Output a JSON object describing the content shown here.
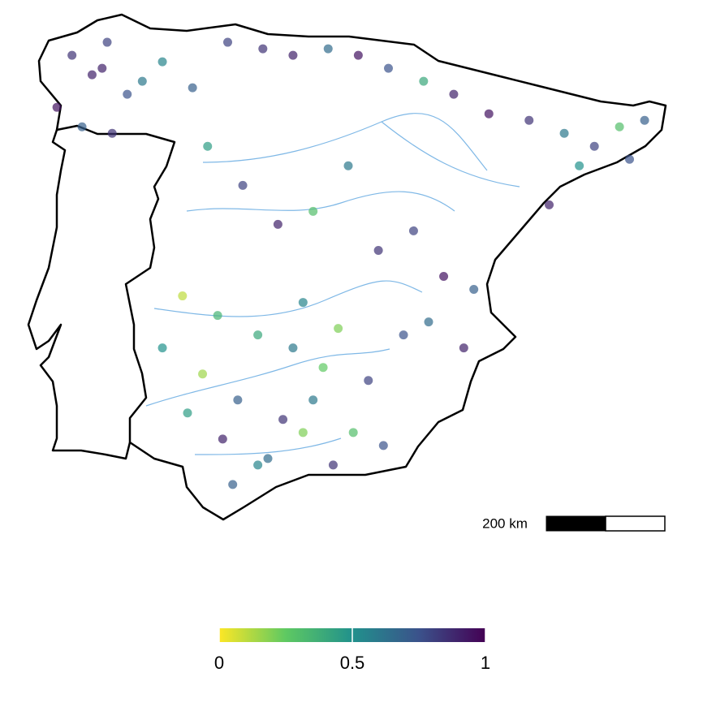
{
  "map": {
    "points": {
      "lon": [
        -8.6,
        -8.2,
        -7.9,
        -7.5,
        -8.9,
        -8.4,
        -7.8,
        -7.2,
        -8.0,
        -6.8,
        -6.2,
        -5.5,
        -4.8,
        -4.2,
        -3.5,
        -2.9,
        -2.3,
        -1.6,
        -1.0,
        -0.3,
        0.5,
        1.2,
        1.8,
        2.3,
        2.8,
        2.5,
        1.5,
        0.9,
        -5.9,
        -5.2,
        -4.5,
        -3.8,
        -3.1,
        -2.5,
        -1.8,
        -1.2,
        -0.6,
        -4.0,
        -3.3,
        -2.0,
        -1.5,
        -0.8,
        -6.4,
        -5.7,
        -4.9,
        -4.2,
        -3.6,
        -2.7,
        -6.8,
        -6.0,
        -5.3,
        -4.4,
        -3.8,
        -3.0,
        -2.4,
        -6.3,
        -5.6,
        -4.7,
        -4.0,
        -3.4,
        -5.4,
        -4.9
      ],
      "lat": [
        43.2,
        42.9,
        43.4,
        42.6,
        42.4,
        42.1,
        42.0,
        42.8,
        43.0,
        43.1,
        42.7,
        43.4,
        43.3,
        43.2,
        43.3,
        43.2,
        43.0,
        42.8,
        42.6,
        42.3,
        42.2,
        42.0,
        41.8,
        42.1,
        42.2,
        41.6,
        41.5,
        40.9,
        41.8,
        41.2,
        40.6,
        40.8,
        41.5,
        40.2,
        40.5,
        39.8,
        39.6,
        39.4,
        39.0,
        38.9,
        39.1,
        38.7,
        39.5,
        39.2,
        38.9,
        38.7,
        38.4,
        38.2,
        38.7,
        38.3,
        37.9,
        37.6,
        37.9,
        37.4,
        37.2,
        37.7,
        37.3,
        37.0,
        37.4,
        36.9,
        36.6,
        36.9
      ],
      "value": [
        0.85,
        0.9,
        0.8,
        0.75,
        0.95,
        0.7,
        0.85,
        0.6,
        0.9,
        0.55,
        0.7,
        0.8,
        0.85,
        0.9,
        0.65,
        0.95,
        0.75,
        0.4,
        0.9,
        0.95,
        0.85,
        0.6,
        0.8,
        0.3,
        0.7,
        0.75,
        0.5,
        0.9,
        0.45,
        0.8,
        0.9,
        0.3,
        0.6,
        0.85,
        0.8,
        0.95,
        0.7,
        0.55,
        0.2,
        0.75,
        0.65,
        0.9,
        0.1,
        0.35,
        0.4,
        0.6,
        0.25,
        0.8,
        0.5,
        0.15,
        0.7,
        0.85,
        0.6,
        0.3,
        0.75,
        0.45,
        0.9,
        0.65,
        0.2,
        0.85,
        0.7,
        0.55
      ]
    },
    "scale_bar_label": "200 km",
    "colorbar": {
      "clim": [
        0,
        1
      ],
      "ticks": [
        0,
        0.5,
        1
      ]
    }
  }
}
